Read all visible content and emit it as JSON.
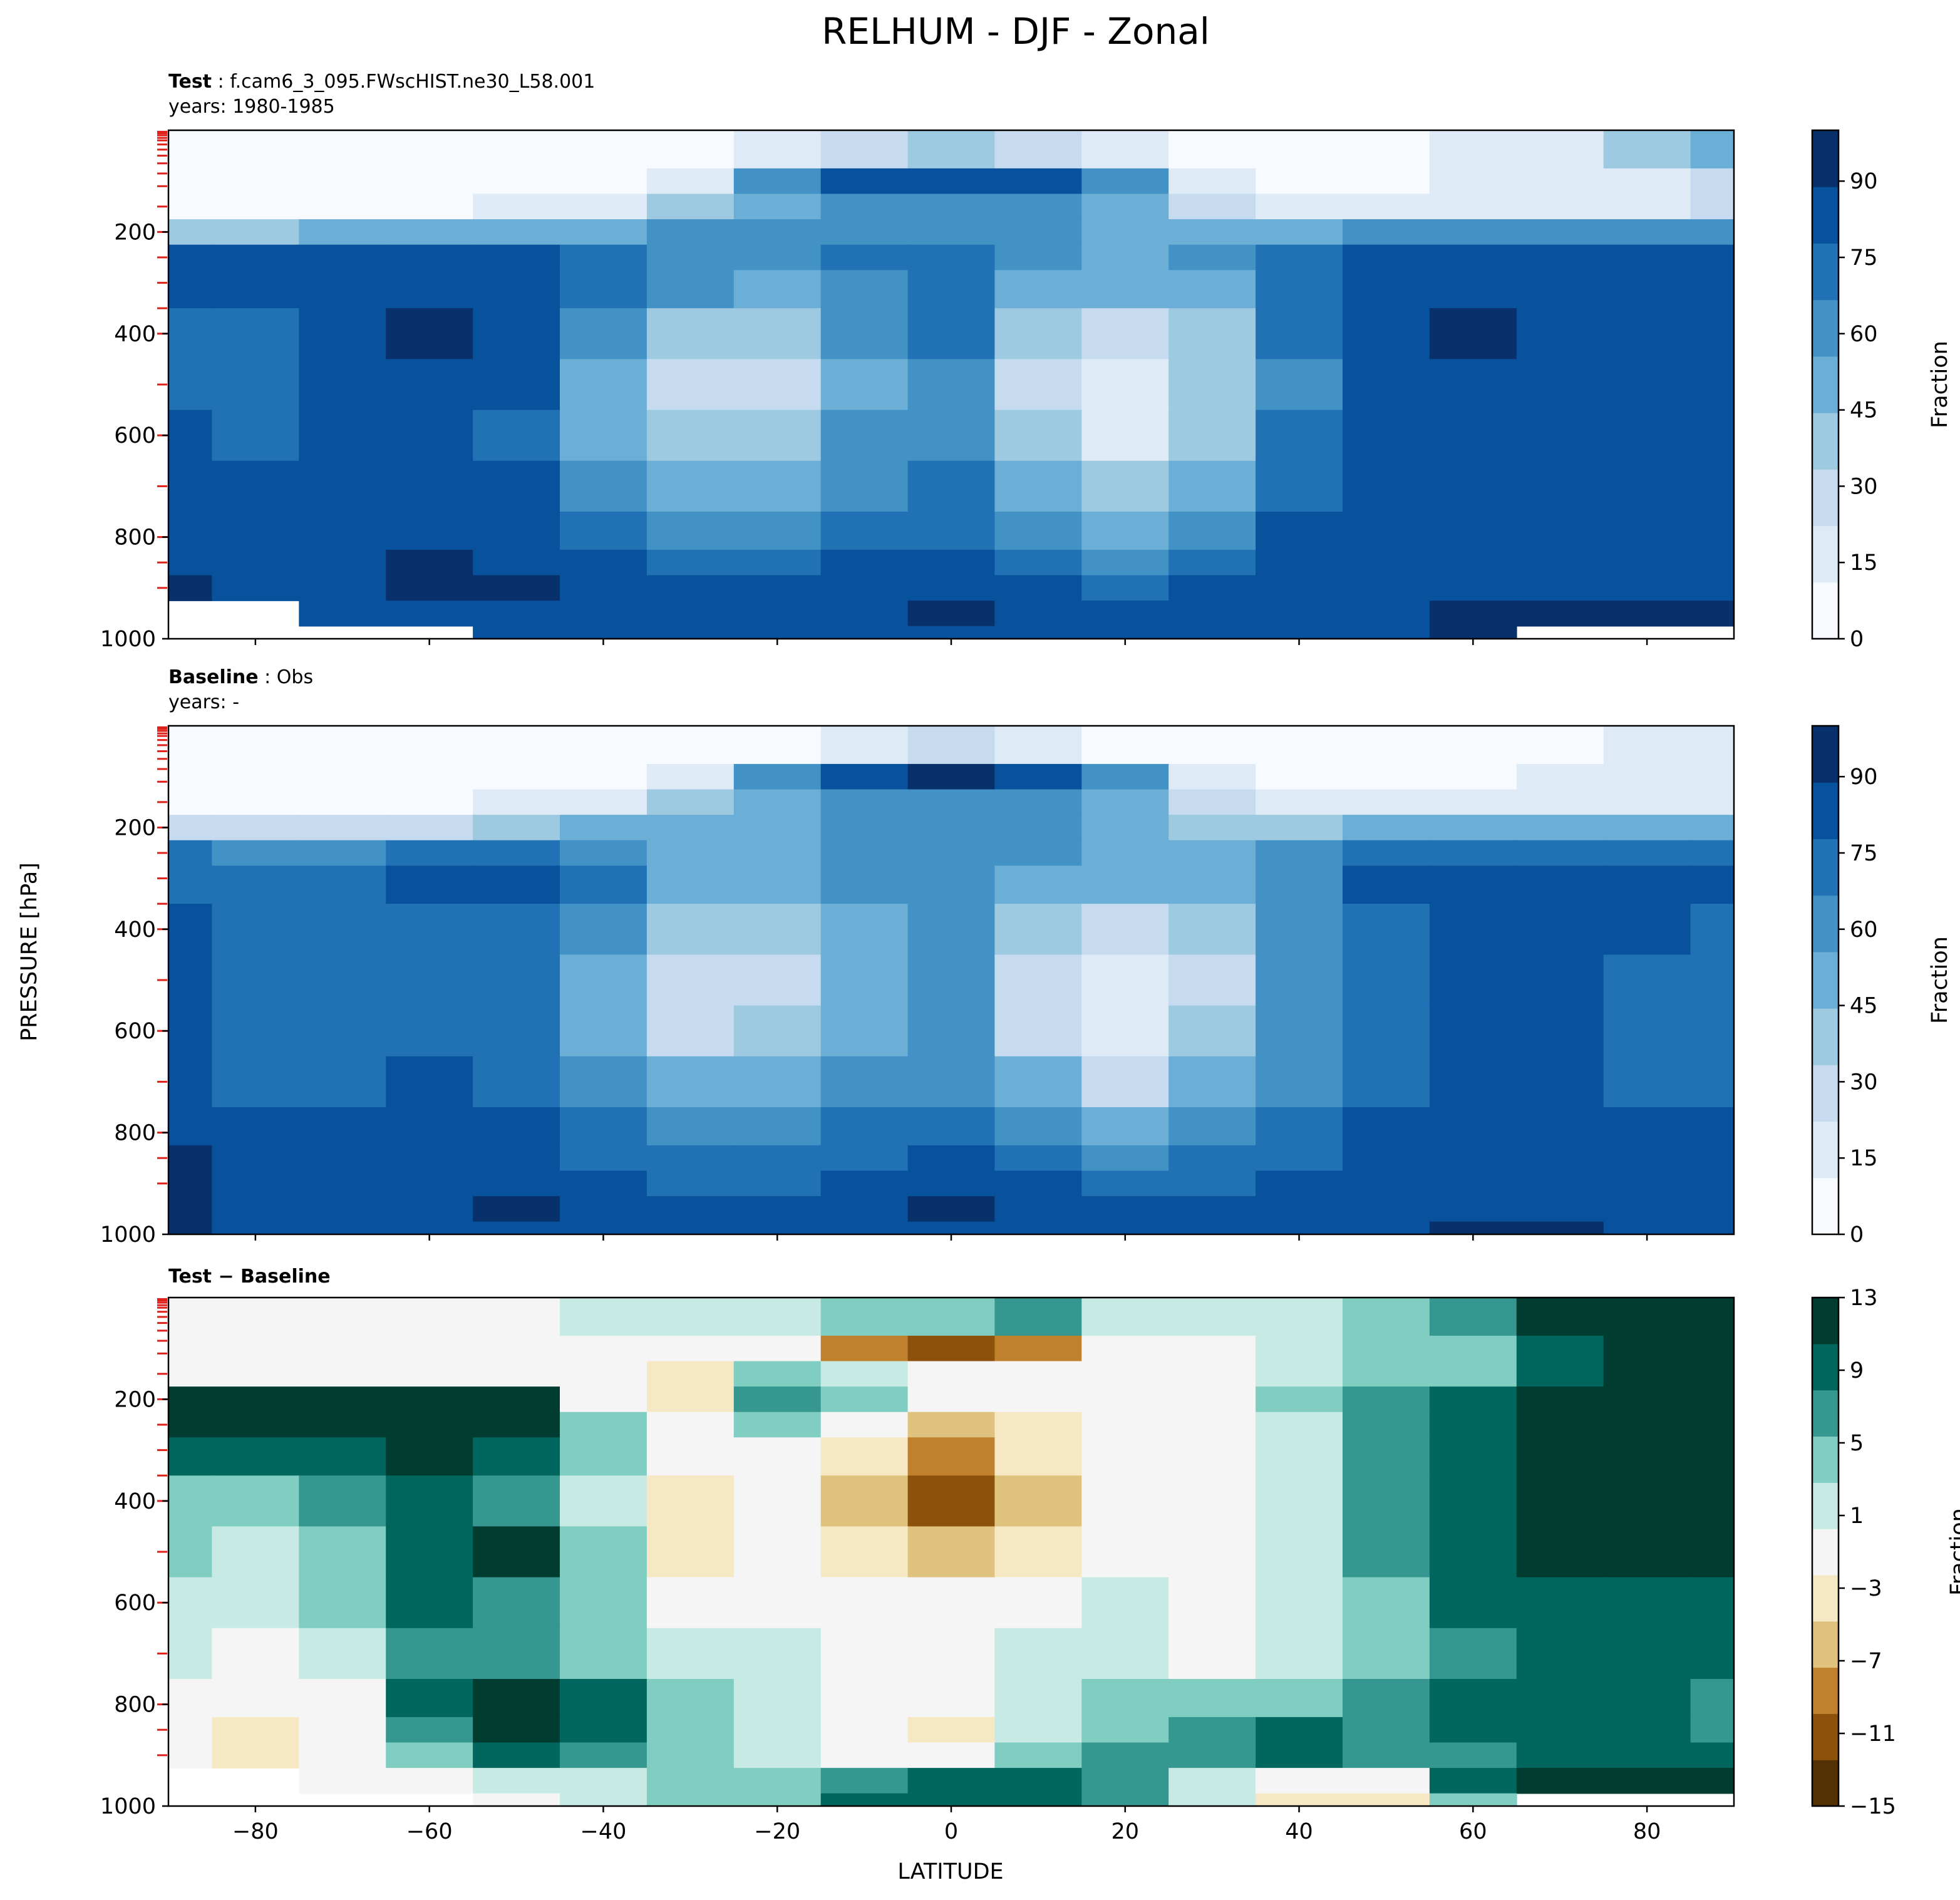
{
  "figure": {
    "title": "RELHUM - DJF - Zonal",
    "ylabel": "PRESSURE [hPa]",
    "xlabel": "LATITUDE"
  },
  "chart_data": [
    {
      "type": "heatmap",
      "name": "test",
      "subtitle_bold": "Test",
      "subtitle_rest": ": f.cam6_3_095.FWscHIST.ne30_L58.001",
      "subtitle_line2": "years: 1980-1985",
      "x_ticks": [
        -80,
        -60,
        -40,
        -20,
        0,
        20,
        40,
        60,
        80
      ],
      "xlim": [
        -90,
        90
      ],
      "y_ticks": [
        200,
        400,
        600,
        800,
        1000
      ],
      "ylim": [
        1000,
        0
      ],
      "colorbar": {
        "label": "Fraction",
        "ticks": [
          0,
          15,
          30,
          45,
          60,
          75,
          90
        ],
        "range": [
          0,
          100
        ],
        "colormap": "Blues",
        "colors": [
          "#f7fbff",
          "#deebf7",
          "#c6dbef",
          "#9ecae1",
          "#6baed6",
          "#4292c6",
          "#2171b5",
          "#08519c",
          "#08306b"
        ]
      },
      "lats": [
        -90,
        -80,
        -70,
        -60,
        -50,
        -40,
        -30,
        -20,
        -10,
        0,
        10,
        20,
        30,
        40,
        50,
        60,
        70,
        80,
        90
      ],
      "levels": [
        50,
        100,
        150,
        200,
        250,
        300,
        400,
        500,
        600,
        700,
        800,
        850,
        900,
        950,
        1000
      ],
      "values": [
        [
          3,
          3,
          3,
          3,
          3,
          5,
          8,
          12,
          30,
          40,
          30,
          12,
          8,
          5,
          10,
          15,
          20,
          35,
          50
        ],
        [
          5,
          5,
          5,
          5,
          5,
          8,
          20,
          60,
          80,
          88,
          80,
          60,
          20,
          10,
          10,
          12,
          15,
          20,
          30
        ],
        [
          10,
          10,
          10,
          10,
          12,
          20,
          40,
          55,
          62,
          65,
          60,
          48,
          30,
          22,
          20,
          20,
          20,
          22,
          25
        ],
        [
          40,
          40,
          45,
          45,
          45,
          55,
          58,
          58,
          62,
          66,
          60,
          50,
          48,
          50,
          60,
          65,
          65,
          65,
          65
        ],
        [
          82,
          82,
          80,
          82,
          82,
          72,
          62,
          62,
          70,
          72,
          62,
          55,
          58,
          70,
          82,
          85,
          85,
          85,
          85
        ],
        [
          80,
          80,
          85,
          88,
          85,
          75,
          58,
          52,
          62,
          70,
          55,
          45,
          55,
          72,
          85,
          88,
          88,
          88,
          88
        ],
        [
          75,
          72,
          85,
          90,
          82,
          62,
          40,
          38,
          58,
          68,
          40,
          28,
          40,
          68,
          85,
          90,
          88,
          88,
          85
        ],
        [
          76,
          72,
          80,
          82,
          78,
          52,
          28,
          32,
          55,
          66,
          30,
          18,
          35,
          66,
          82,
          86,
          85,
          85,
          85
        ],
        [
          78,
          75,
          78,
          82,
          76,
          55,
          35,
          38,
          58,
          65,
          35,
          22,
          42,
          68,
          80,
          82,
          82,
          82,
          82
        ],
        [
          80,
          78,
          80,
          84,
          80,
          65,
          48,
          48,
          62,
          68,
          48,
          35,
          52,
          72,
          80,
          82,
          82,
          82,
          82
        ],
        [
          85,
          80,
          82,
          86,
          85,
          75,
          60,
          60,
          70,
          74,
          62,
          52,
          65,
          78,
          82,
          84,
          82,
          82,
          84
        ],
        [
          88,
          82,
          86,
          90,
          88,
          80,
          70,
          70,
          78,
          80,
          72,
          65,
          72,
          80,
          84,
          86,
          84,
          84,
          86
        ],
        [
          90,
          84,
          88,
          95,
          92,
          85,
          80,
          80,
          85,
          86,
          82,
          75,
          78,
          82,
          85,
          88,
          86,
          86,
          88
        ],
        [
          null,
          null,
          84,
          88,
          85,
          82,
          82,
          82,
          88,
          90,
          88,
          80,
          80,
          82,
          85,
          90,
          92,
          95,
          97
        ],
        [
          null,
          null,
          null,
          null,
          85,
          82,
          82,
          85,
          88,
          88,
          85,
          82,
          80,
          82,
          85,
          90,
          null,
          null,
          null
        ]
      ]
    },
    {
      "type": "heatmap",
      "name": "baseline",
      "subtitle_bold": "Baseline",
      "subtitle_rest": ": Obs",
      "subtitle_line2": "years: -",
      "x_ticks": [
        -80,
        -60,
        -40,
        -20,
        0,
        20,
        40,
        60,
        80
      ],
      "xlim": [
        -90,
        90
      ],
      "y_ticks": [
        200,
        400,
        600,
        800,
        1000
      ],
      "ylim": [
        1000,
        0
      ],
      "colorbar": {
        "label": "Fraction",
        "ticks": [
          0,
          15,
          30,
          45,
          60,
          75,
          90
        ],
        "range": [
          0,
          100
        ],
        "colormap": "Blues",
        "colors": [
          "#f7fbff",
          "#deebf7",
          "#c6dbef",
          "#9ecae1",
          "#6baed6",
          "#4292c6",
          "#2171b5",
          "#08519c",
          "#08306b"
        ]
      },
      "lats": [
        -90,
        -80,
        -70,
        -60,
        -50,
        -40,
        -30,
        -20,
        -10,
        0,
        10,
        20,
        30,
        40,
        50,
        60,
        70,
        80,
        90
      ],
      "levels": [
        50,
        100,
        150,
        200,
        250,
        300,
        400,
        500,
        600,
        700,
        800,
        850,
        900,
        950,
        1000
      ],
      "values": [
        [
          3,
          3,
          3,
          3,
          3,
          3,
          5,
          8,
          20,
          30,
          20,
          8,
          5,
          3,
          5,
          8,
          10,
          12,
          15
        ],
        [
          5,
          5,
          5,
          5,
          5,
          8,
          20,
          65,
          88,
          95,
          88,
          65,
          20,
          10,
          8,
          10,
          12,
          12,
          15
        ],
        [
          10,
          10,
          10,
          10,
          12,
          20,
          40,
          55,
          62,
          65,
          60,
          48,
          30,
          18,
          15,
          15,
          15,
          15,
          18
        ],
        [
          30,
          30,
          30,
          32,
          35,
          45,
          52,
          52,
          58,
          62,
          58,
          50,
          42,
          40,
          45,
          48,
          48,
          48,
          50
        ],
        [
          70,
          65,
          65,
          68,
          68,
          62,
          55,
          55,
          62,
          66,
          58,
          52,
          52,
          58,
          68,
          72,
          72,
          72,
          72
        ],
        [
          75,
          72,
          75,
          78,
          78,
          68,
          52,
          50,
          60,
          66,
          52,
          45,
          52,
          65,
          78,
          80,
          80,
          80,
          80
        ],
        [
          78,
          72,
          74,
          76,
          74,
          60,
          38,
          35,
          55,
          62,
          38,
          25,
          38,
          62,
          75,
          80,
          80,
          78,
          76
        ],
        [
          80,
          72,
          72,
          74,
          72,
          50,
          28,
          28,
          52,
          60,
          30,
          18,
          32,
          60,
          75,
          78,
          78,
          76,
          75
        ],
        [
          82,
          74,
          74,
          76,
          72,
          52,
          32,
          34,
          55,
          60,
          32,
          22,
          38,
          62,
          75,
          78,
          78,
          76,
          75
        ],
        [
          85,
          76,
          76,
          78,
          75,
          60,
          45,
          45,
          60,
          64,
          45,
          32,
          48,
          66,
          76,
          78,
          78,
          76,
          76
        ],
        [
          88,
          80,
          80,
          82,
          80,
          70,
          58,
          58,
          68,
          72,
          58,
          48,
          60,
          72,
          78,
          80,
          80,
          78,
          78
        ],
        [
          90,
          82,
          82,
          84,
          82,
          76,
          68,
          68,
          75,
          78,
          68,
          60,
          68,
          76,
          80,
          82,
          82,
          80,
          80
        ],
        [
          92,
          84,
          84,
          86,
          88,
          82,
          76,
          76,
          82,
          85,
          80,
          72,
          75,
          80,
          82,
          84,
          84,
          82,
          82
        ],
        [
          95,
          86,
          82,
          84,
          92,
          88,
          80,
          78,
          86,
          90,
          86,
          78,
          78,
          82,
          86,
          88,
          86,
          85,
          84
        ],
        [
          95,
          86,
          80,
          82,
          86,
          85,
          80,
          80,
          85,
          86,
          84,
          80,
          78,
          82,
          86,
          90,
          90,
          88,
          86
        ]
      ]
    },
    {
      "type": "heatmap",
      "name": "difference",
      "subtitle_bold": "Test − Baseline",
      "subtitle_rest": "",
      "subtitle_line2": "",
      "x_ticks": [
        -80,
        -60,
        -40,
        -20,
        0,
        20,
        40,
        60,
        80
      ],
      "xlim": [
        -90,
        90
      ],
      "y_ticks": [
        200,
        400,
        600,
        800,
        1000
      ],
      "ylim": [
        1000,
        0
      ],
      "colorbar": {
        "label": "Fraction",
        "ticks": [
          13,
          9,
          5,
          1,
          -3,
          -7,
          -11,
          -15
        ],
        "range": [
          -15,
          13
        ],
        "colormap": "BrBG",
        "colors": [
          "#543005",
          "#8c510a",
          "#bf812d",
          "#dfc27d",
          "#f6e8c3",
          "#f5f5f5",
          "#c7eae5",
          "#80cdc1",
          "#35978f",
          "#01665e",
          "#003c30"
        ]
      },
      "lats": [
        -90,
        -80,
        -70,
        -60,
        -50,
        -40,
        -30,
        -20,
        -10,
        0,
        10,
        20,
        30,
        40,
        50,
        60,
        70,
        80,
        90
      ],
      "levels": [
        50,
        100,
        150,
        200,
        250,
        300,
        400,
        500,
        600,
        700,
        800,
        850,
        900,
        950,
        1000
      ],
      "values": [
        [
          0,
          0,
          0,
          0,
          0,
          1,
          1,
          2,
          3,
          4,
          6,
          2,
          2,
          1,
          4,
          6,
          12,
          14,
          14
        ],
        [
          0,
          0,
          0,
          0,
          0,
          0,
          -1,
          -2,
          -8,
          -10,
          -8,
          -2,
          0,
          1,
          3,
          5,
          10,
          12,
          14
        ],
        [
          0,
          0,
          0,
          0,
          -1,
          -2,
          -3,
          3,
          2,
          0,
          0,
          0,
          0,
          1,
          3,
          5,
          9,
          14,
          14
        ],
        [
          14,
          14,
          14,
          14,
          14,
          -1,
          -3,
          6,
          3,
          -2,
          -1,
          0,
          0,
          3,
          6,
          8,
          12,
          14,
          14
        ],
        [
          14,
          14,
          14,
          14,
          14,
          5,
          -2,
          3,
          -1,
          -6,
          -3,
          0,
          0,
          2,
          6,
          9,
          12,
          12,
          13
        ],
        [
          8,
          8,
          10,
          12,
          8,
          3,
          -2,
          0,
          -3,
          -8,
          -4,
          -1,
          -1,
          2,
          6,
          9,
          11,
          12,
          12
        ],
        [
          4,
          4,
          6,
          10,
          6,
          2,
          -3,
          -1,
          -6,
          -10,
          -5,
          -1,
          -2,
          2,
          6,
          9,
          11,
          12,
          11
        ],
        [
          3,
          2,
          4,
          9,
          11,
          4,
          -3,
          -1,
          -4,
          -6,
          -3,
          0,
          -2,
          2,
          6,
          9,
          11,
          12,
          11
        ],
        [
          2,
          1,
          3,
          8,
          7,
          3,
          0,
          0,
          -1,
          -2,
          0,
          1,
          -1,
          2,
          5,
          8,
          10,
          10,
          9
        ],
        [
          1,
          0,
          2,
          7,
          6,
          4,
          2,
          1,
          0,
          0,
          1,
          2,
          0,
          2,
          5,
          7,
          9,
          9,
          8
        ],
        [
          0,
          -2,
          -1,
          8,
          12,
          8,
          4,
          1,
          -1,
          -1,
          1,
          3,
          3,
          4,
          6,
          8,
          9,
          8,
          7
        ],
        [
          0,
          -4,
          -2,
          7,
          14,
          10,
          5,
          2,
          -2,
          -3,
          1,
          4,
          6,
          8,
          7,
          8,
          9,
          8,
          7
        ],
        [
          0,
          -3,
          -1,
          4,
          8,
          7,
          4,
          2,
          0,
          0,
          3,
          6,
          7,
          8,
          6,
          7,
          9,
          9,
          8
        ],
        [
          null,
          null,
          0,
          0,
          1,
          2,
          4,
          5,
          6,
          9,
          10,
          7,
          2,
          -2,
          0,
          8,
          12,
          14,
          14
        ],
        [
          null,
          null,
          null,
          null,
          0,
          1,
          3,
          5,
          8,
          10,
          9,
          6,
          1,
          -3,
          -3,
          4,
          null,
          null,
          null
        ]
      ]
    }
  ]
}
